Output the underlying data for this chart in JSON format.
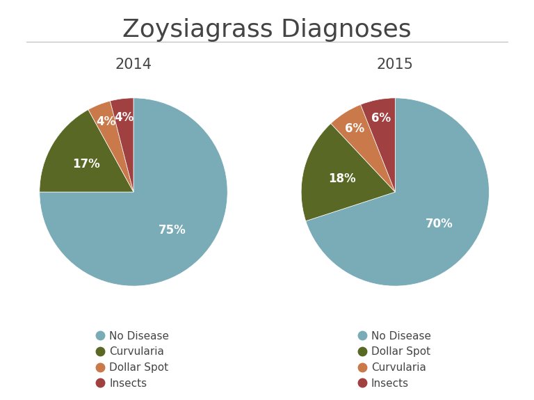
{
  "title": "Zoysiagrass Diagnoses",
  "background_color": "#ffffff",
  "title_fontsize": 26,
  "title_font": "Georgia",
  "pie2014": {
    "year": "2014",
    "values": [
      75,
      17,
      4,
      4
    ],
    "colors": [
      "#7aacb8",
      "#596825",
      "#c9794a",
      "#a04040"
    ],
    "pct_labels": [
      "75%",
      "17%",
      "4%",
      "4%"
    ],
    "legend_labels": [
      "No Disease",
      "Curvularia",
      "Dollar Spot",
      "Insects"
    ]
  },
  "pie2015": {
    "year": "2015",
    "values": [
      70,
      18,
      6,
      6
    ],
    "colors": [
      "#7aacb8",
      "#596825",
      "#c9794a",
      "#a04040"
    ],
    "pct_labels": [
      "70%",
      "18%",
      "6%",
      "6%"
    ],
    "legend_labels": [
      "No Disease",
      "Dollar Spot",
      "Curvularia",
      "Insects"
    ]
  },
  "label_color": "#ffffff",
  "label_fontsize": 12,
  "year_fontsize": 15,
  "legend_fontsize": 11,
  "separator_color": "#bbbbbb",
  "text_color": "#444444"
}
